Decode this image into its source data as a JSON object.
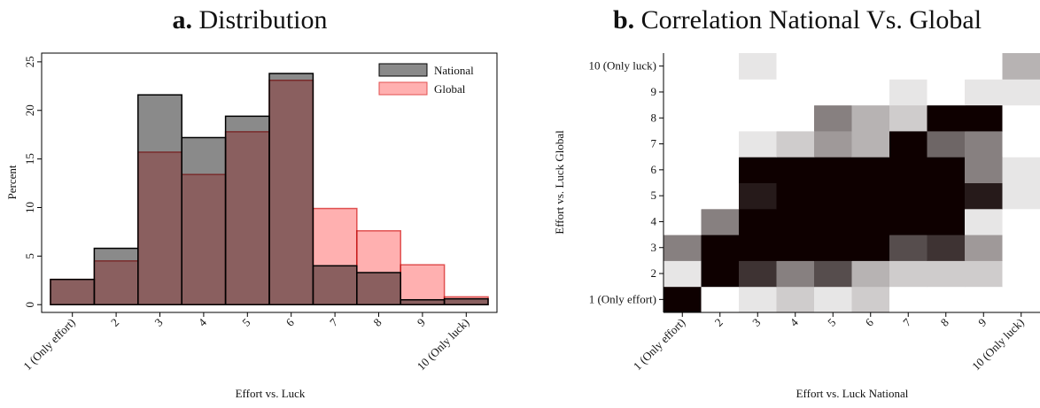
{
  "chart_data": [
    {
      "type": "bar",
      "panel": "a.",
      "title": "Distribution",
      "x_label": "Effort vs. Luck",
      "y_label": "Percent",
      "categories": [
        "1 (Only effort)",
        "2",
        "3",
        "4",
        "5",
        "6",
        "7",
        "8",
        "9",
        "10 (Only luck)"
      ],
      "series": [
        {
          "name": "National",
          "color": "#8a8a8a",
          "values": [
            2.6,
            5.8,
            21.6,
            17.2,
            19.4,
            23.8,
            4.0,
            3.3,
            0.5,
            0.6
          ]
        },
        {
          "name": "Global",
          "color": "#ffb0b0",
          "values": [
            2.6,
            4.5,
            15.7,
            13.4,
            17.8,
            23.1,
            9.9,
            7.6,
            4.1,
            0.8
          ]
        }
      ],
      "ylim": [
        -0.8,
        25.9
      ],
      "yticks": [
        0,
        5,
        10,
        15,
        20,
        25
      ],
      "legend": "top-right"
    },
    {
      "type": "heatmap",
      "panel": "b.",
      "title": "Correlation National Vs. Global",
      "x_label": "Effort vs. Luck National",
      "y_label": "Effort vs. Luck Global",
      "x_categories": [
        "1 (Only effort)",
        "2",
        "3",
        "4",
        "5",
        "6",
        "7",
        "8",
        "9",
        "10 (Only luck)"
      ],
      "y_categories": [
        "1 (Only effort)",
        "2",
        "3",
        "4",
        "5",
        "6",
        "7",
        "8",
        "9",
        "10 (Only luck)"
      ],
      "color_low": "#ffffff",
      "color_high": "#0e0000",
      "values": [
        [
          1,
          0,
          0.1,
          0.2,
          0.1,
          0.2,
          0,
          0,
          0,
          0
        ],
        [
          0.1,
          1,
          0.8,
          0.5,
          0.7,
          0.3,
          0.2,
          0.2,
          0.2,
          0
        ],
        [
          0.5,
          1,
          1,
          1,
          1,
          1,
          0.7,
          0.8,
          0.4,
          0
        ],
        [
          0,
          0.5,
          1,
          1,
          1,
          1,
          1,
          1,
          0.1,
          0
        ],
        [
          0,
          0,
          0.9,
          1,
          1,
          1,
          1,
          1,
          0.9,
          0.1
        ],
        [
          0,
          0,
          1,
          1,
          1,
          1,
          1,
          1,
          0.5,
          0.1
        ],
        [
          0,
          0,
          0.1,
          0.2,
          0.4,
          0.3,
          1,
          0.6,
          0.5,
          0
        ],
        [
          0,
          0,
          0,
          0,
          0.5,
          0.3,
          0.2,
          1,
          1,
          0
        ],
        [
          0,
          0,
          0,
          0,
          0,
          0,
          0.1,
          0,
          0.1,
          0.1
        ],
        [
          0,
          0,
          0.1,
          0,
          0,
          0,
          0,
          0,
          0,
          0.3
        ]
      ]
    }
  ]
}
